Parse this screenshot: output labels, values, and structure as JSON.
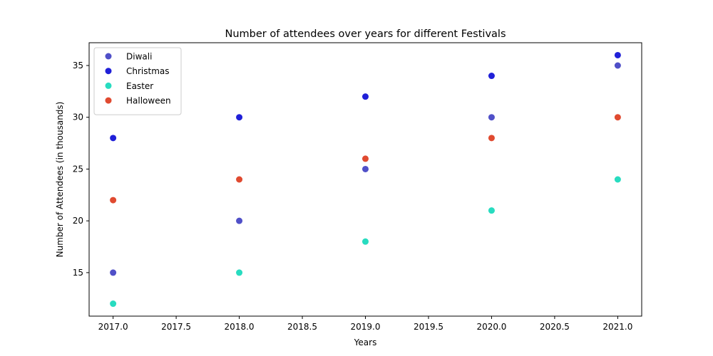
{
  "chart_data": {
    "type": "scatter",
    "title": "Number of attendees over years for different Festivals",
    "xlabel": "Years",
    "ylabel": "Number of Attendees (in thousands)",
    "xlim": [
      2016.81,
      2021.19
    ],
    "ylim": [
      10.8,
      37.2
    ],
    "xticks": [
      2017.0,
      2017.5,
      2018.0,
      2018.5,
      2019.0,
      2019.5,
      2020.0,
      2020.5,
      2021.0
    ],
    "xtick_labels": [
      "2017.0",
      "2017.5",
      "2018.0",
      "2018.5",
      "2019.0",
      "2019.5",
      "2020.0",
      "2020.5",
      "2021.0"
    ],
    "yticks": [
      15,
      20,
      25,
      30,
      35
    ],
    "ytick_labels": [
      "15",
      "20",
      "25",
      "30",
      "35"
    ],
    "grid": false,
    "legend_position": "top-left",
    "x": [
      2017,
      2018,
      2019,
      2020,
      2021
    ],
    "series": [
      {
        "name": "Diwali",
        "color": "#5050c8",
        "values": [
          15,
          20,
          25,
          30,
          35
        ]
      },
      {
        "name": "Christmas",
        "color": "#2020d8",
        "values": [
          28,
          30,
          32,
          34,
          36
        ]
      },
      {
        "name": "Easter",
        "color": "#28dcc0",
        "values": [
          12,
          15,
          18,
          21,
          24
        ]
      },
      {
        "name": "Halloween",
        "color": "#e04a30",
        "values": [
          22,
          24,
          26,
          28,
          30
        ]
      }
    ]
  }
}
